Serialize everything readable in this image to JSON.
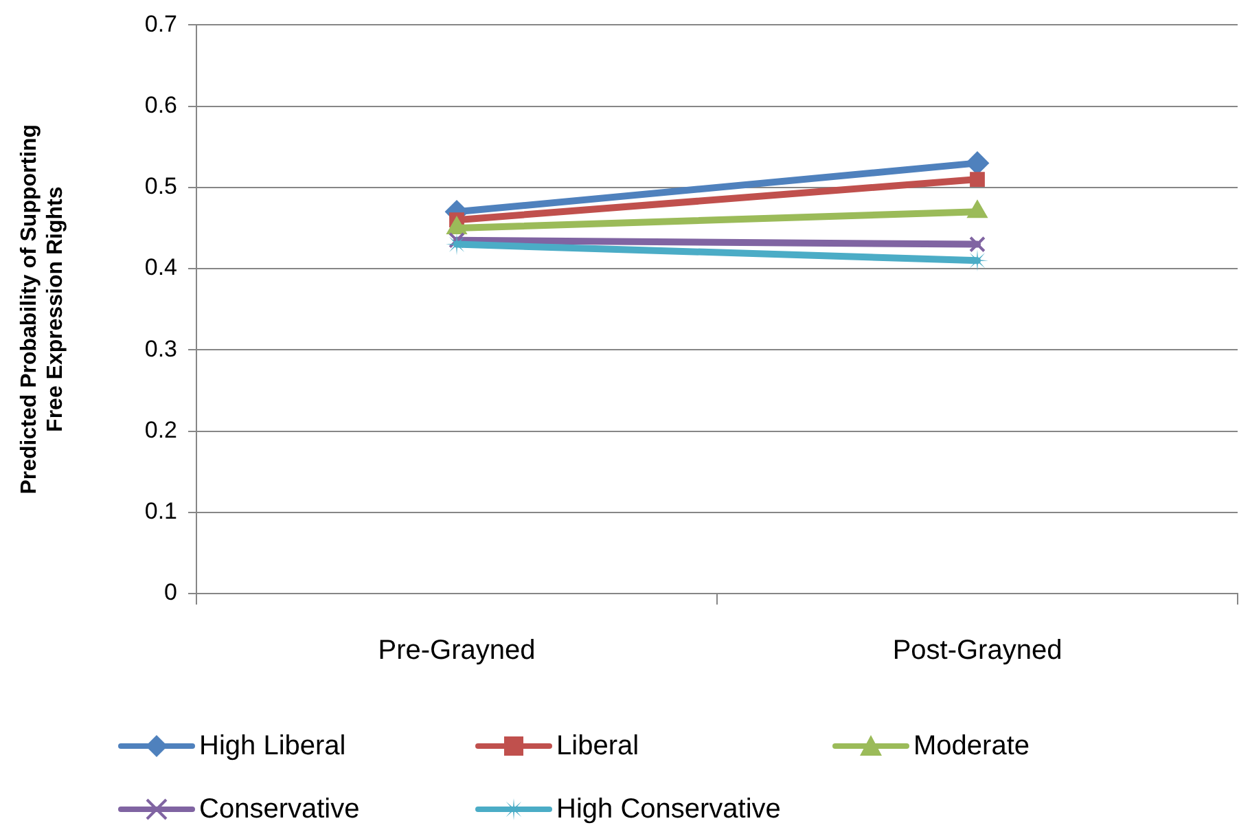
{
  "chart_data": {
    "type": "line",
    "ylabel": "Predicted Probability of Supporting Free Expression Rights",
    "categories": [
      "Pre-Grayned",
      "Post-Grayned"
    ],
    "series": [
      {
        "name": "High Liberal",
        "color": "#4f81bd",
        "marker": "diamond",
        "values": [
          0.47,
          0.53
        ]
      },
      {
        "name": "Liberal",
        "color": "#c0504d",
        "marker": "square",
        "values": [
          0.46,
          0.51
        ]
      },
      {
        "name": "Moderate",
        "color": "#9bbb59",
        "marker": "triangle",
        "values": [
          0.45,
          0.47
        ]
      },
      {
        "name": "Conservative",
        "color": "#8064a2",
        "marker": "cross",
        "values": [
          0.435,
          0.43
        ]
      },
      {
        "name": "High Conservative",
        "color": "#4bacc6",
        "marker": "star",
        "values": [
          0.43,
          0.41
        ]
      }
    ],
    "ylim": [
      0,
      0.7
    ],
    "yticks": [
      0,
      0.1,
      0.2,
      0.3,
      0.4,
      0.5,
      0.6,
      0.7
    ],
    "grid": "y",
    "legend": "bottom",
    "line_style": "solid"
  }
}
